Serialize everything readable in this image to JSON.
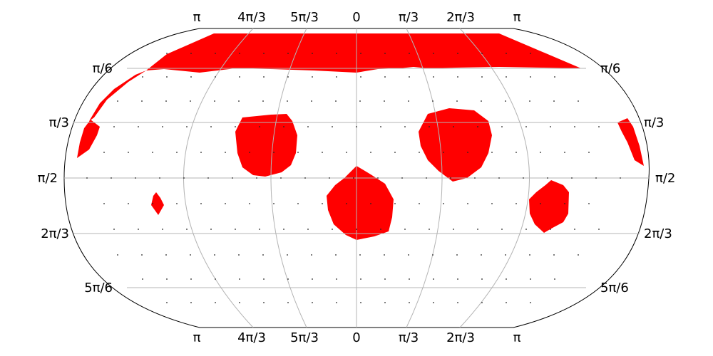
{
  "map": {
    "projection": "pseudo-cylindrical sky map (equal-area style)",
    "top_lon_labels": [
      "π",
      "4π/3",
      "5π/3",
      "0",
      "π/3",
      "2π/3",
      "π"
    ],
    "bottom_lon_labels": [
      "π",
      "4π/3",
      "5π/3",
      "0",
      "π/3",
      "2π/3",
      "π"
    ],
    "lat_labels": [
      "π/6",
      "π/3",
      "π/2",
      "2π/3",
      "5π/6"
    ],
    "region_color": "#ff0000",
    "grid_color": "#b4b4b4",
    "outline_color": "#000000",
    "sample_point_color": "#222222"
  }
}
